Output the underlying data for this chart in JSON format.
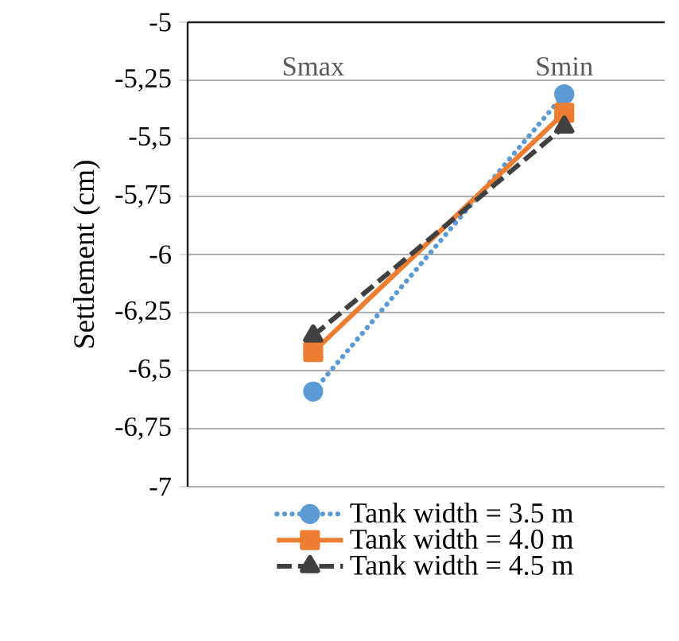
{
  "chart_data": {
    "type": "line",
    "ylabel": "Settlement (cm)",
    "categories": [
      "Smax",
      "Smin"
    ],
    "series": [
      {
        "name": "Tank width = 3.5 m",
        "color": "#5b9bd5",
        "values": [
          -6.59,
          -5.31
        ],
        "marker": "circle",
        "line_style": "dotted"
      },
      {
        "name": "Tank width = 4.0 m",
        "color": "#ed7d31",
        "values": [
          -6.42,
          -5.39
        ],
        "marker": "square",
        "line_style": "solid"
      },
      {
        "name": "Tank width = 4.5 m",
        "color": "#404040",
        "values": [
          -6.35,
          -5.45
        ],
        "marker": "triangle",
        "line_style": "dashed"
      }
    ],
    "ylim": [
      -7,
      -5
    ],
    "yticks": [
      -5,
      {
        "value": -5.25,
        "label": "-5,25"
      },
      {
        "value": -5.5,
        "label": "-5,5"
      },
      {
        "value": -5.75,
        "label": "-5,75"
      },
      -6,
      {
        "value": -6.25,
        "label": "-6,25"
      },
      {
        "value": -6.5,
        "label": "-6,5"
      },
      {
        "value": -6.75,
        "label": "-6,75"
      },
      -7
    ],
    "grid": "y",
    "legend": "bottom"
  }
}
